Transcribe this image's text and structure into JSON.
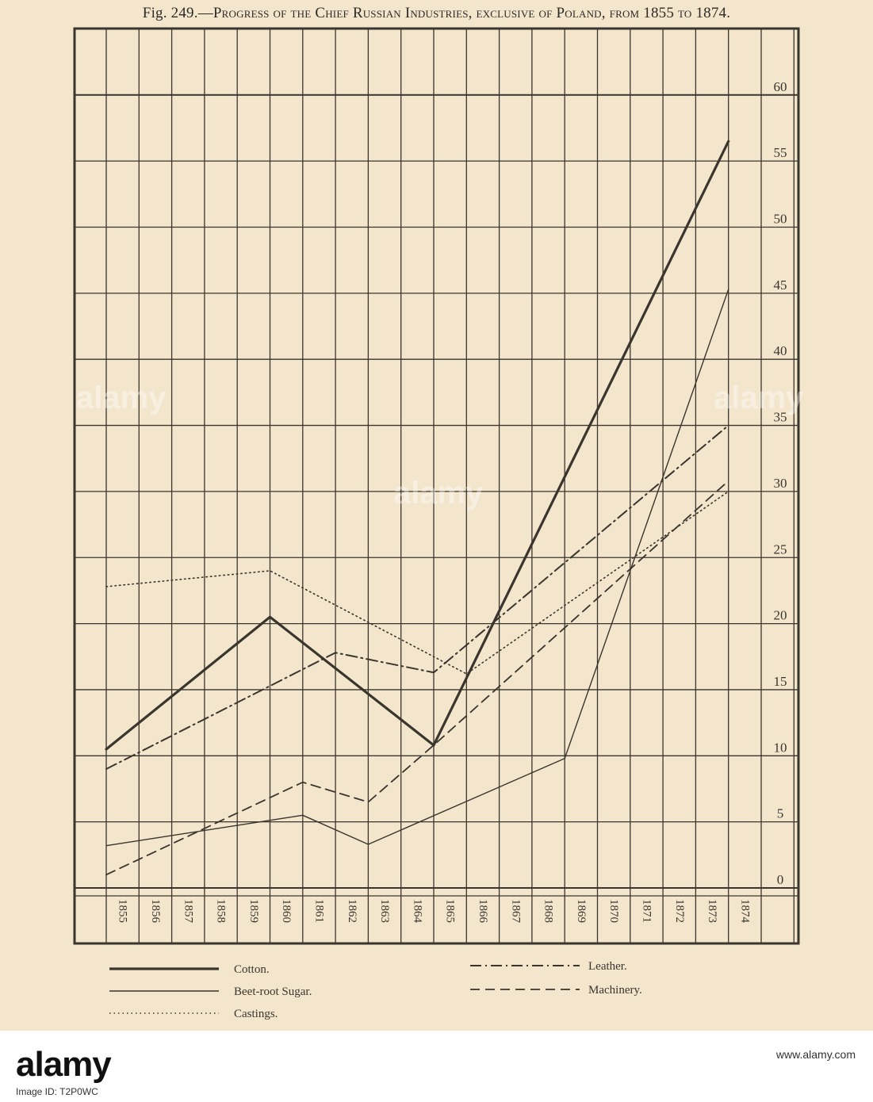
{
  "chart_data": {
    "type": "line",
    "title_fig": "Fig. 249.—",
    "title_rest": "Progress of the Chief Russian Industries, exclusive of Poland, from 1855 to 1874.",
    "x": [
      "1855",
      "1856",
      "1857",
      "1858",
      "1859",
      "1860",
      "1861",
      "1862",
      "1863",
      "1864",
      "1865",
      "1866",
      "1867",
      "1868",
      "1869",
      "1870",
      "1871",
      "1872",
      "1873",
      "1874"
    ],
    "yticks": [
      "0",
      "5",
      "10",
      "15",
      "20",
      "25",
      "30",
      "35",
      "40",
      "45",
      "50",
      "55",
      "60"
    ],
    "ylim": [
      0,
      60
    ],
    "series": [
      {
        "name": "Cotton.",
        "style": "thick",
        "points": [
          [
            1855,
            10.5
          ],
          [
            1860,
            20.5
          ],
          [
            1865,
            10.8
          ],
          [
            1874,
            56.5
          ]
        ]
      },
      {
        "name": "Beet-root Sugar.",
        "style": "thin",
        "points": [
          [
            1855,
            3.2
          ],
          [
            1861,
            5.5
          ],
          [
            1863,
            3.3
          ],
          [
            1869,
            9.8
          ],
          [
            1874,
            45.3
          ]
        ]
      },
      {
        "name": "Castings.",
        "style": "dotted",
        "points": [
          [
            1855,
            22.8
          ],
          [
            1860,
            24.0
          ],
          [
            1865,
            17.5
          ],
          [
            1866,
            16.2
          ],
          [
            1874,
            30.0
          ]
        ]
      },
      {
        "name": "Leather.",
        "style": "dashdot",
        "points": [
          [
            1855,
            9.0
          ],
          [
            1862,
            17.8
          ],
          [
            1865,
            16.3
          ],
          [
            1874,
            35.0
          ]
        ]
      },
      {
        "name": "Machinery.",
        "style": "dashed",
        "points": [
          [
            1855,
            1.0
          ],
          [
            1861,
            8.0
          ],
          [
            1863,
            6.5
          ],
          [
            1865,
            10.8
          ],
          [
            1874,
            30.8
          ]
        ]
      }
    ],
    "legend_placement": "bottom"
  },
  "watermark_text": "alamy",
  "bottom_bar": {
    "logo": "alamy",
    "ref_text": "Image ID: T2P0WC",
    "id_text": "www.alamy.com",
    "site_text": ""
  }
}
